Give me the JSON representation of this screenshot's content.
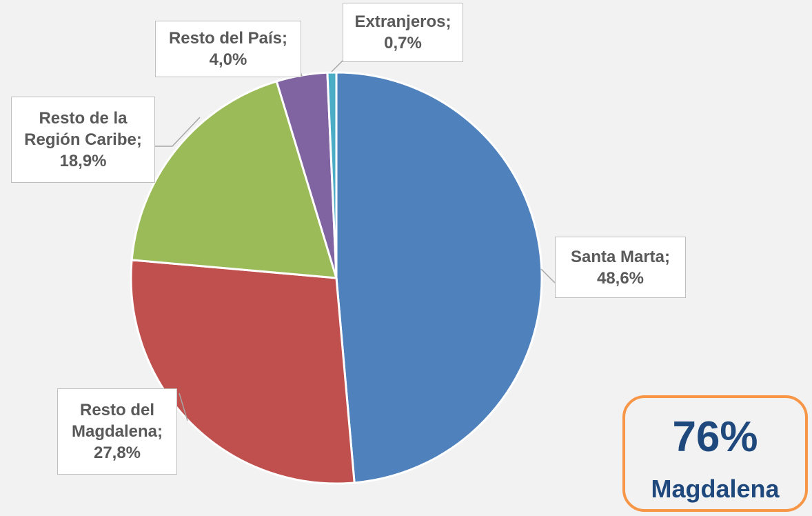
{
  "chart_data": {
    "type": "pie",
    "categories": [
      "Santa Marta;",
      "Resto del Magdalena;",
      "Resto de la Región Caribe;",
      "Resto del País;",
      "Extranjeros;"
    ],
    "values": [
      48.6,
      27.8,
      18.9,
      4.0,
      0.7
    ],
    "value_labels": [
      "48,6%",
      "27,8%",
      "18,9%",
      "4,0%",
      "0,7%"
    ],
    "colors": [
      "#4f81bd",
      "#c0504d",
      "#9bbb59",
      "#8064a2",
      "#4bacc6"
    ],
    "annotation": {
      "value": "76%",
      "label": "Magdalena"
    }
  }
}
